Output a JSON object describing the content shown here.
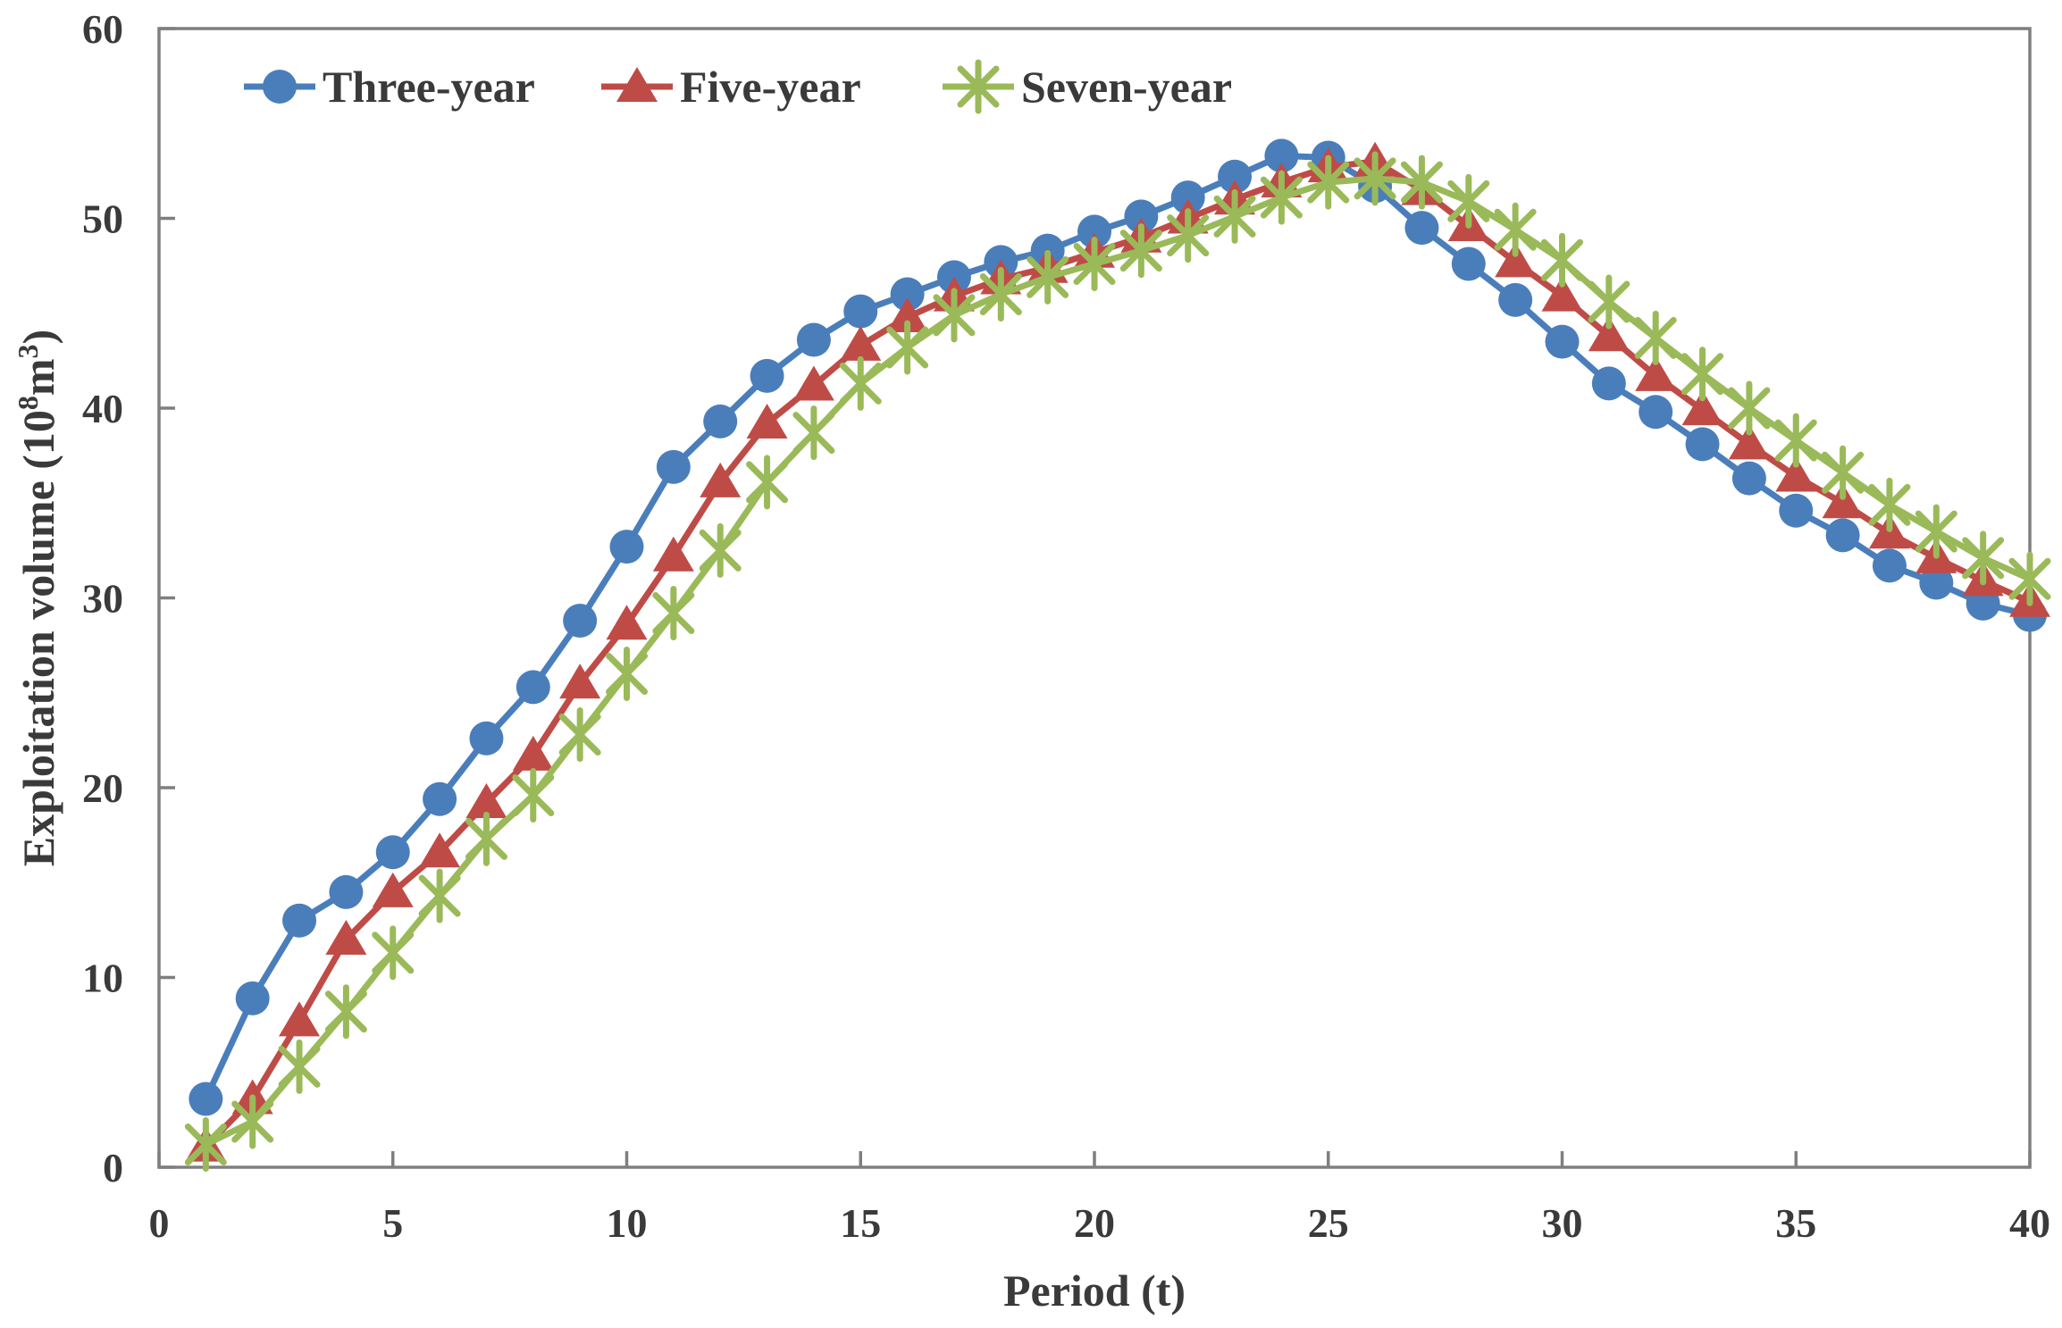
{
  "figure": {
    "background": "#ffffff",
    "axis_color": "#7f7f7f",
    "text_color": "#3a3a3a"
  },
  "chart_data": {
    "type": "line",
    "title": "",
    "xlabel": "Period (t)",
    "ylabel": "Exploitation volume (10⁸m³)",
    "ylabel_parts": [
      {
        "t": "Exploitation volume (10",
        "sup": false
      },
      {
        "t": "8",
        "sup": true
      },
      {
        "t": "m",
        "sup": false
      },
      {
        "t": "3",
        "sup": true
      },
      {
        "t": ")",
        "sup": false
      }
    ],
    "xlim": [
      0,
      40
    ],
    "ylim": [
      0,
      60
    ],
    "xticks": [
      0,
      5,
      10,
      15,
      20,
      25,
      30,
      35,
      40
    ],
    "yticks": [
      0,
      10,
      20,
      30,
      40,
      50,
      60
    ],
    "grid": false,
    "legend_position": "top-center-inside",
    "x": [
      1,
      2,
      3,
      4,
      5,
      6,
      7,
      8,
      9,
      10,
      11,
      12,
      13,
      14,
      15,
      16,
      17,
      18,
      19,
      20,
      21,
      22,
      23,
      24,
      25,
      26,
      27,
      28,
      29,
      30,
      31,
      32,
      33,
      34,
      35,
      36,
      37,
      38,
      39,
      40
    ],
    "series": [
      {
        "name": "Three-year",
        "color": "#4a7ebb",
        "marker": "circle",
        "values": [
          3.6,
          8.9,
          13.0,
          14.5,
          16.6,
          19.4,
          22.6,
          25.3,
          28.8,
          32.7,
          36.9,
          39.3,
          41.7,
          43.6,
          45.1,
          46.0,
          46.9,
          47.7,
          48.3,
          49.3,
          50.1,
          51.1,
          52.2,
          53.3,
          53.2,
          51.7,
          49.5,
          47.6,
          45.7,
          43.5,
          41.3,
          39.8,
          38.1,
          36.3,
          34.6,
          33.3,
          31.7,
          30.8,
          29.7,
          29.1
        ]
      },
      {
        "name": "Five-year",
        "color": "#bf4b47",
        "marker": "triangle",
        "values": [
          1.1,
          3.6,
          7.7,
          12.0,
          14.5,
          16.6,
          19.2,
          21.7,
          25.5,
          28.6,
          32.2,
          36.1,
          39.2,
          41.2,
          43.3,
          44.8,
          45.9,
          46.8,
          47.4,
          48.2,
          49.0,
          50.0,
          51.0,
          51.9,
          52.7,
          53.0,
          51.5,
          49.6,
          47.7,
          45.9,
          43.8,
          41.7,
          39.9,
          38.1,
          36.4,
          35.0,
          33.4,
          32.1,
          30.9,
          29.8
        ]
      },
      {
        "name": "Seven-year",
        "color": "#9aba59",
        "marker": "asterisk",
        "values": [
          1.2,
          2.4,
          5.3,
          8.2,
          11.3,
          14.3,
          17.3,
          19.6,
          22.8,
          26.0,
          29.2,
          32.5,
          36.1,
          38.7,
          41.3,
          43.2,
          44.9,
          46.0,
          46.9,
          47.6,
          48.3,
          49.1,
          50.1,
          51.1,
          51.9,
          52.1,
          51.9,
          50.9,
          49.4,
          47.8,
          45.6,
          43.7,
          41.8,
          40.0,
          38.3,
          36.6,
          34.9,
          33.5,
          32.1,
          31.0
        ]
      }
    ]
  }
}
